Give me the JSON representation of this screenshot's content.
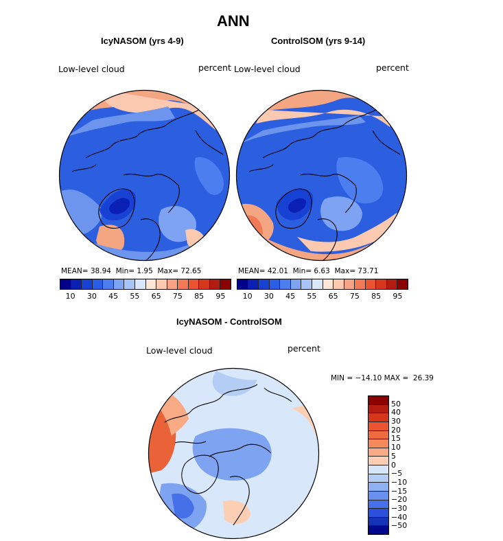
{
  "title": "ANN",
  "panels": [
    {
      "subtitle": "IcyNASOM (yrs 4-9)",
      "variable": "Low-level cloud",
      "units": "percent",
      "mean_label": "MEAN=",
      "mean": "38.94",
      "min_label": "Min=",
      "min": "1.95",
      "max_label": "Max=",
      "max": "72.65"
    },
    {
      "subtitle": "ControlSOM (yrs 9-14)",
      "variable": "Low-level cloud",
      "units": "percent",
      "mean_label": "MEAN=",
      "mean": "42.01",
      "min_label": "Min=",
      "min": "6.63",
      "max_label": "Max=",
      "max": "73.71"
    }
  ],
  "colorbar_ticks": [
    "10",
    "30",
    "45",
    "55",
    "65",
    "75",
    "85",
    "95"
  ],
  "colorbar_colors": [
    "#00008b",
    "#0a1fb4",
    "#1741d2",
    "#2b5ee6",
    "#4d7ef0",
    "#7ea3f3",
    "#a8c3f6",
    "#d8e6f8",
    "#fde6d8",
    "#fbc9b0",
    "#f7a385",
    "#f27a57",
    "#ea5430",
    "#d6361c",
    "#b31c10",
    "#8b0000"
  ],
  "diff": {
    "subtitle": "IcyNASOM - ControlSOM",
    "variable": "Low-level cloud",
    "units": "percent",
    "minmax": "MIN = −14.10 MAX =  26.39",
    "ticks": [
      "50",
      "40",
      "30",
      "20",
      "15",
      "10",
      "5",
      "0",
      "−5",
      "−10",
      "−15",
      "−20",
      "−30",
      "−40",
      "−50"
    ],
    "colors": [
      "#8b0000",
      "#b31c10",
      "#d6361c",
      "#ea5430",
      "#f06a40",
      "#f4895e",
      "#f8aa85",
      "#fccfb4",
      "#d6e5f7",
      "#b3cdf4",
      "#8fb0f2",
      "#6a90ef",
      "#4670e8",
      "#2a50dc",
      "#1533b8",
      "#00088b"
    ]
  },
  "colors": {
    "blue_base": "#2c5fe0",
    "blue_light": "#6d95ee",
    "blue_dark": "#1236a6",
    "red_light": "#f4a582",
    "red_mid": "#ef7a55",
    "diff_base": "#d9e7fa",
    "diff_blue": "#7ea3f0",
    "diff_red": "#ea6238"
  }
}
